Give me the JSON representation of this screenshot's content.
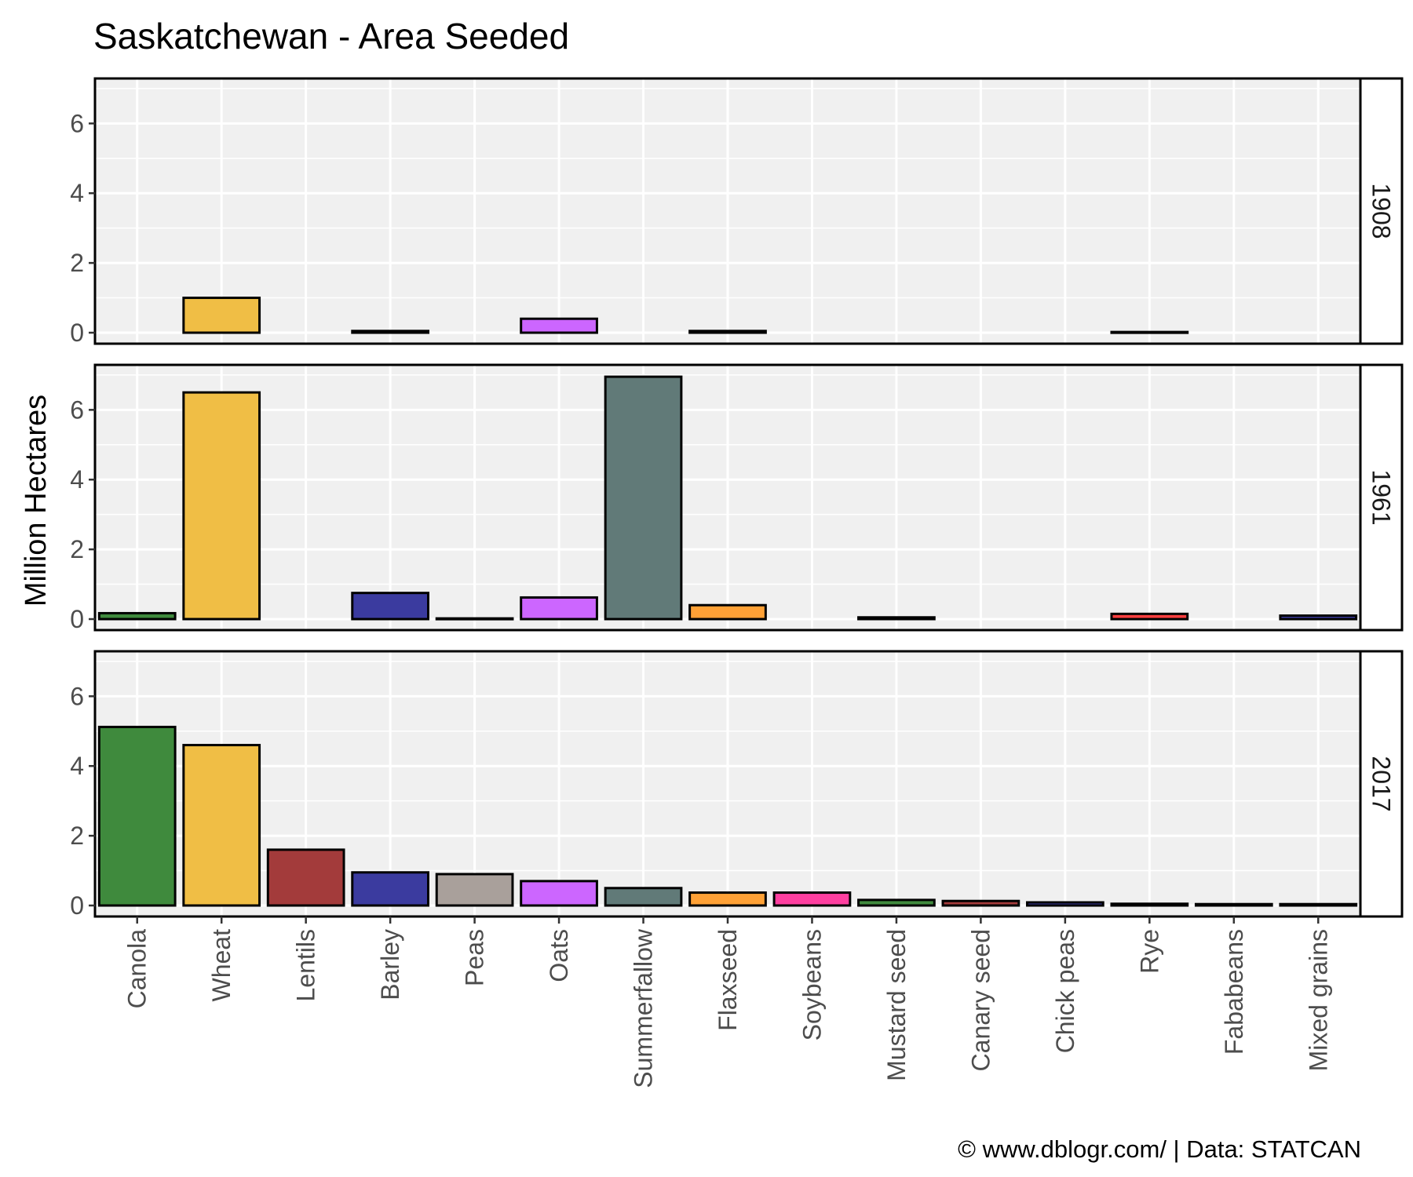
{
  "chart_data": {
    "type": "bar",
    "title": "Saskatchewan - Area Seeded",
    "ylabel": "Million Hectares",
    "xlabel": "",
    "ylim": [
      0,
      7.2
    ],
    "yticks": [
      0,
      2,
      4,
      6
    ],
    "categories": [
      "Canola",
      "Wheat",
      "Lentils",
      "Barley",
      "Peas",
      "Oats",
      "Summerfallow",
      "Flaxseed",
      "Soybeans",
      "Mustard seed",
      "Canary seed",
      "Chick peas",
      "Rye",
      "Fababeans",
      "Mixed grains"
    ],
    "category_colors": [
      "#3f8a3d",
      "#f0be45",
      "#a33b3b",
      "#3b3b9f",
      "#a9a09b",
      "#cc66ff",
      "#617a78",
      "#ffa136",
      "#ff3fa0",
      "#3f8a3d",
      "#a33b3b",
      "#3b3b9f",
      "#ff3f3f",
      "#ffffff",
      "#3b3b9f"
    ],
    "facets": [
      {
        "label": "1908",
        "values": [
          0,
          1.0,
          0,
          0.05,
          0,
          0.4,
          0,
          0.05,
          0,
          0,
          0,
          0,
          0.02,
          0,
          0
        ]
      },
      {
        "label": "1961",
        "values": [
          0.17,
          6.5,
          0,
          0.75,
          0.02,
          0.62,
          6.95,
          0.4,
          0,
          0.05,
          0,
          0,
          0.15,
          0,
          0.1
        ]
      },
      {
        "label": "2017",
        "values": [
          5.12,
          4.6,
          1.6,
          0.95,
          0.9,
          0.7,
          0.5,
          0.37,
          0.37,
          0.16,
          0.13,
          0.09,
          0.05,
          0.04,
          0.04
        ]
      }
    ],
    "grid": true,
    "legend": "none"
  },
  "caption": "© www.dblogr.com/  |  Data: STATCAN"
}
